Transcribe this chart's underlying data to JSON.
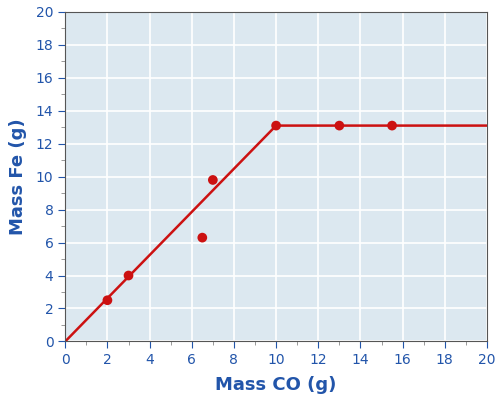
{
  "scatter_x": [
    2,
    3,
    6.5,
    7,
    10,
    13,
    15.5
  ],
  "scatter_y": [
    2.5,
    4,
    6.3,
    9.8,
    13.1,
    13.1,
    13.1
  ],
  "line_x": [
    0,
    10,
    20
  ],
  "line_y": [
    0,
    13.1,
    13.1
  ],
  "xlabel": "Mass CO (g)",
  "ylabel": "Mass Fe (g)",
  "xlim": [
    0,
    20
  ],
  "ylim": [
    0,
    20
  ],
  "xticks": [
    0,
    2,
    4,
    6,
    8,
    10,
    12,
    14,
    16,
    18,
    20
  ],
  "yticks": [
    0,
    2,
    4,
    6,
    8,
    10,
    12,
    14,
    16,
    18,
    20
  ],
  "line_color": "#cc1111",
  "scatter_color": "#cc1111",
  "background_color": "#dce8f0",
  "fig_background": "#ffffff",
  "grid_color": "#ffffff",
  "label_color": "#2255aa",
  "tick_color": "#2255aa",
  "xlabel_fontsize": 13,
  "ylabel_fontsize": 13,
  "tick_fontsize": 10,
  "marker_size": 7,
  "line_width": 1.8
}
